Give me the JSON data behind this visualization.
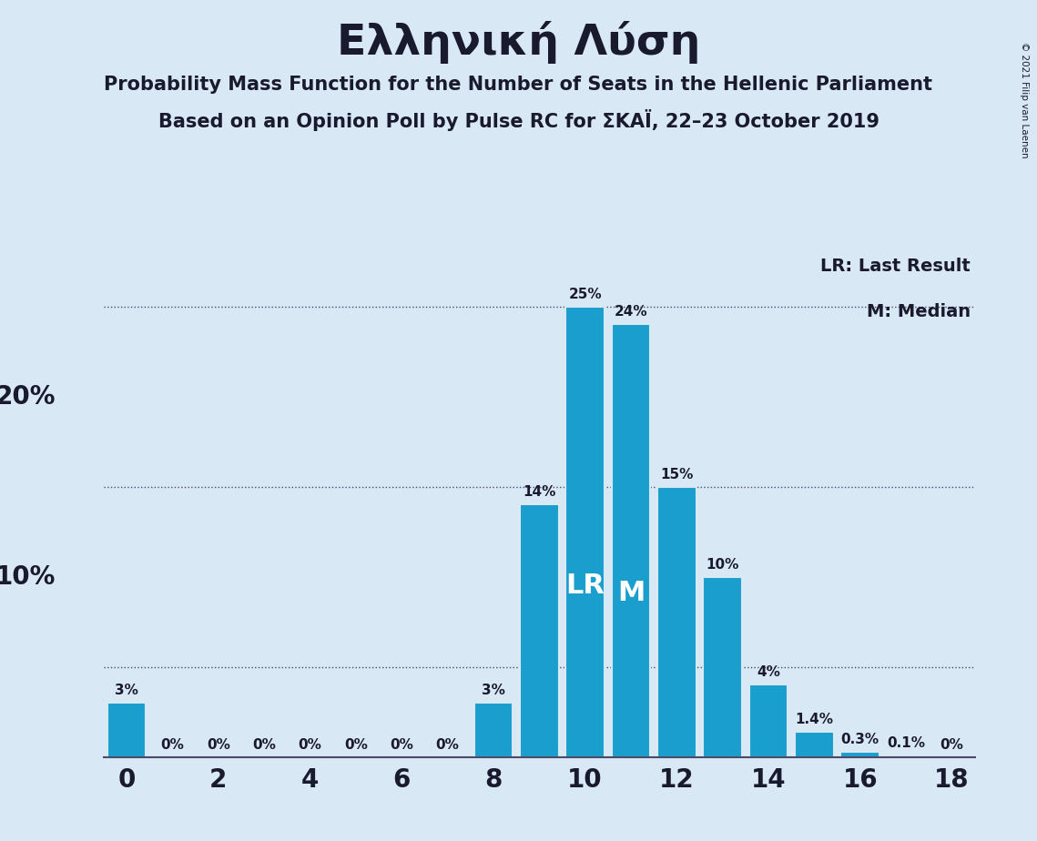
{
  "title": "Ελληνική Λύση",
  "subtitle1": "Probability Mass Function for the Number of Seats in the Hellenic Parliament",
  "subtitle2": "Based on an Opinion Poll by Pulse RC for ΣΚΑΪ, 22–23 October 2019",
  "copyright": "© 2021 Filip van Laenen",
  "background_color": "#d9e8f5",
  "bar_color": "#1a9ece",
  "seats": [
    0,
    1,
    2,
    3,
    4,
    5,
    6,
    7,
    8,
    9,
    10,
    11,
    12,
    13,
    14,
    15,
    16,
    17,
    18
  ],
  "probabilities": [
    3,
    0,
    0,
    0,
    0,
    0,
    0,
    0,
    3,
    14,
    25,
    24,
    15,
    10,
    4,
    1.4,
    0.3,
    0.1,
    0
  ],
  "label_texts": [
    "3%",
    "0%",
    "0%",
    "0%",
    "0%",
    "0%",
    "0%",
    "0%",
    "3%",
    "14%",
    "25%",
    "24%",
    "15%",
    "10%",
    "4%",
    "1.4%",
    "0.3%",
    "0.1%",
    "0%"
  ],
  "lr_seat": 10,
  "median_seat": 11,
  "lr_label": "LR",
  "median_label": "M",
  "legend_lr": "LR: Last Result",
  "legend_m": "M: Median",
  "hlines": [
    5,
    15,
    25
  ],
  "ylabel_values": [
    10,
    20
  ],
  "ylabel_texts": [
    "10%",
    "20%"
  ],
  "xlim": [
    -0.5,
    18.5
  ],
  "ylim": [
    0,
    28
  ],
  "xticks": [
    0,
    2,
    4,
    6,
    8,
    10,
    12,
    14,
    16,
    18
  ],
  "title_fontsize": 34,
  "subtitle_fontsize": 15,
  "label_fontsize": 11,
  "ylabel_fontsize": 20,
  "xtick_fontsize": 20,
  "legend_fontsize": 14,
  "lr_m_fontsize": 22,
  "text_color": "#1a1a2e"
}
